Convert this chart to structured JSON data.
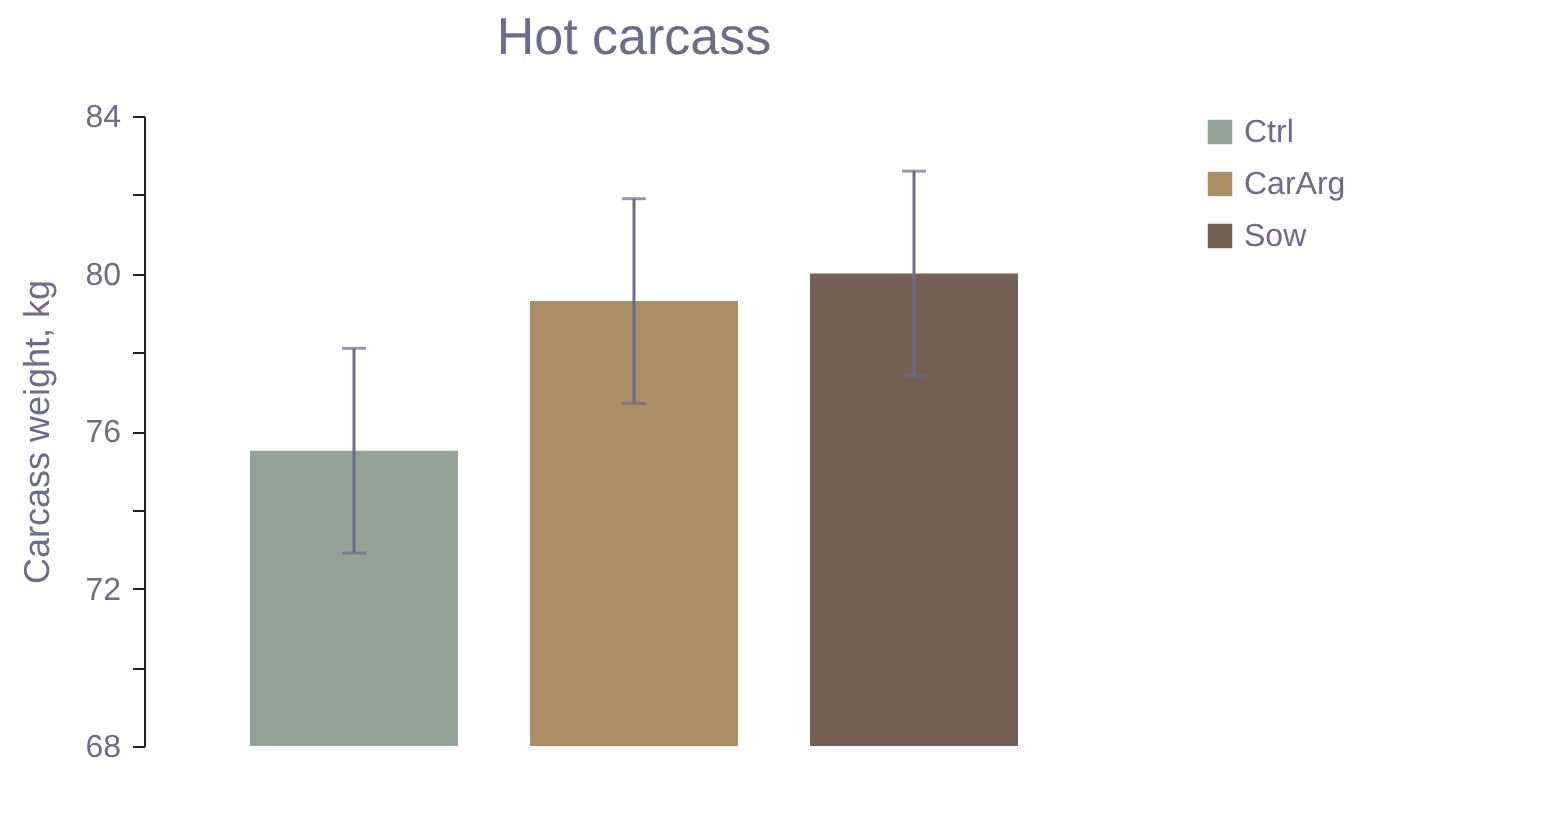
{
  "chart_data": {
    "type": "bar",
    "title": "Hot carcass",
    "ylabel": "Carcass weight, kg",
    "categories": [
      null
    ],
    "series": [
      {
        "name": "Ctrl",
        "color": "#93a197",
        "values": [
          75.5
        ],
        "errors": [
          2.6
        ]
      },
      {
        "name": "CarArg",
        "color": "#ab8e66",
        "values": [
          79.3
        ],
        "errors": [
          2.6
        ]
      },
      {
        "name": "Sow",
        "color": "#736156",
        "values": [
          80.0
        ],
        "errors": [
          2.6
        ]
      }
    ],
    "ylim": [
      68,
      84
    ],
    "yticks": [
      68,
      {
        "value": 70,
        "label": null
      },
      72,
      {
        "value": 74,
        "label": null
      },
      76,
      {
        "value": 78,
        "label": null
      },
      80,
      {
        "value": 82,
        "label": null
      },
      84
    ],
    "tick_labels": "y",
    "grid": false,
    "legend": "right"
  }
}
